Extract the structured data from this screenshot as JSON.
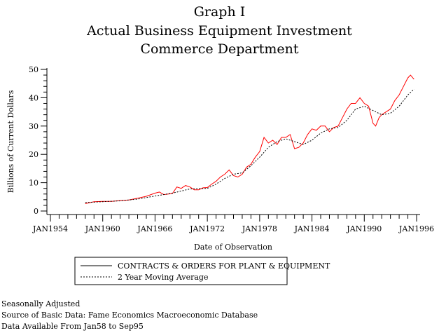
{
  "titles": [
    "Graph I",
    "Actual Business Equipment Investment",
    "Commerce Department"
  ],
  "footer": [
    "Seasonally Adjusted",
    "Source of Basic Data: Fame Economics Macroeconomic Database",
    "Data Available From Jan58 to Sep95"
  ],
  "chart_data": {
    "type": "line",
    "title": "Actual Business Equipment Investment",
    "xlabel": "Date of Observation",
    "ylabel": "Billions of Current Dollars",
    "xlim": [
      1954,
      1996
    ],
    "ylim": [
      0,
      50
    ],
    "xticks": [
      1954,
      1960,
      1966,
      1972,
      1978,
      1984,
      1990,
      1996
    ],
    "xtick_labels": [
      "JAN1954",
      "JAN1960",
      "JAN1966",
      "JAN1972",
      "JAN1978",
      "JAN1984",
      "JAN1990",
      "JAN1996"
    ],
    "yticks": [
      0,
      10,
      20,
      30,
      40,
      50
    ],
    "ytick_labels": [
      "0",
      "10",
      "20",
      "30",
      "40",
      "50"
    ],
    "legend_position": "bottom",
    "series": [
      {
        "name": "CONTRACTS & ORDERS FOR PLANT & EQUIPMENT",
        "color": "#ff0000",
        "style": "solid",
        "x": [
          1958,
          1959,
          1960,
          1961,
          1962,
          1963,
          1964,
          1965,
          1966,
          1966.5,
          1967,
          1968,
          1968.5,
          1969,
          1969.5,
          1970,
          1970.5,
          1971,
          1971.5,
          1972,
          1972.5,
          1973,
          1973.5,
          1974,
          1974.5,
          1975,
          1975.5,
          1976,
          1976.5,
          1977,
          1977.5,
          1978,
          1978.5,
          1979,
          1979.5,
          1980,
          1980.5,
          1981,
          1981.5,
          1982,
          1982.5,
          1983,
          1983.5,
          1984,
          1984.5,
          1985,
          1985.5,
          1986,
          1986.5,
          1987,
          1987.5,
          1988,
          1988.5,
          1989,
          1989.5,
          1990,
          1990.5,
          1991,
          1991.3,
          1991.7,
          1992,
          1992.5,
          1993,
          1993.5,
          1994,
          1994.5,
          1995,
          1995.3,
          1995.7
        ],
        "y": [
          2.6,
          3.3,
          3.4,
          3.4,
          3.7,
          3.9,
          4.5,
          5.2,
          6.3,
          6.7,
          5.8,
          6.2,
          8.5,
          8.0,
          9.0,
          8.5,
          7.5,
          7.5,
          8.2,
          8.3,
          9.5,
          10.5,
          12.0,
          13.0,
          14.5,
          12.5,
          12.0,
          13.0,
          15.5,
          16.5,
          19.0,
          21.0,
          26.0,
          24.0,
          25.0,
          23.5,
          26.0,
          26.0,
          27.0,
          22.0,
          22.5,
          24.0,
          27.0,
          29.0,
          28.5,
          30.0,
          30.0,
          28.0,
          29.5,
          30.0,
          33.0,
          36.0,
          38.0,
          38.0,
          40.0,
          38.0,
          37.0,
          31.0,
          30.0,
          33.0,
          34.0,
          35.0,
          36.0,
          39.0,
          41.0,
          44.0,
          47.0,
          48.0,
          46.5
        ]
      },
      {
        "name": "2 Year Moving Average",
        "color": "#000000",
        "style": "dashed",
        "x": [
          1958,
          1960,
          1962,
          1964,
          1966,
          1968,
          1970,
          1972,
          1973,
          1974,
          1975,
          1976,
          1977,
          1978,
          1979,
          1980,
          1981,
          1982,
          1983,
          1984,
          1985,
          1986,
          1987,
          1988,
          1989,
          1990,
          1991,
          1992,
          1993,
          1994,
          1995,
          1995.7
        ],
        "y": [
          3.0,
          3.3,
          3.6,
          4.2,
          5.3,
          6.3,
          7.8,
          8.0,
          9.5,
          11.5,
          13.0,
          13.5,
          16.0,
          19.0,
          22.5,
          24.5,
          25.5,
          24.5,
          23.5,
          25.0,
          27.5,
          29.0,
          29.5,
          32.0,
          36.0,
          37.0,
          35.5,
          34.0,
          34.5,
          37.0,
          41.0,
          43.0
        ]
      }
    ]
  }
}
